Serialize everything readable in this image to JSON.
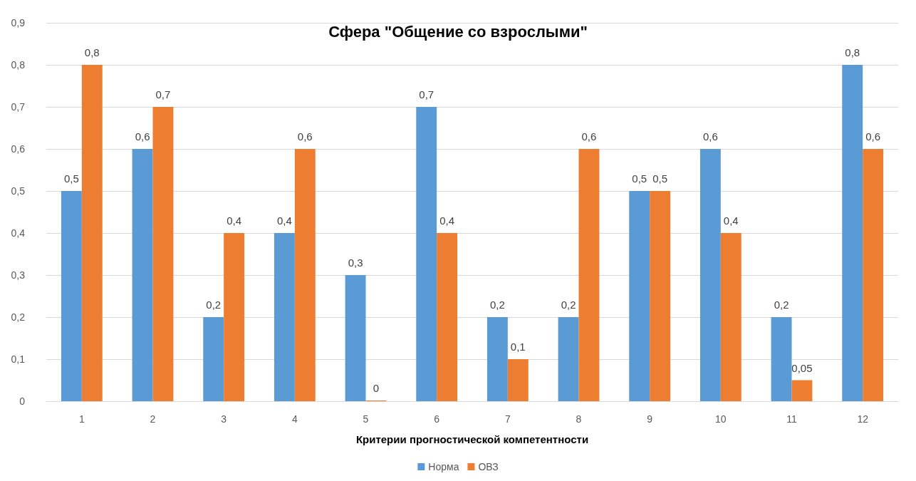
{
  "chart_data": {
    "type": "bar",
    "title": "Сфера \"Общение со взрослыми\"",
    "xlabel": "Критерии прогностической компетентности",
    "categories": [
      "1",
      "2",
      "3",
      "4",
      "5",
      "6",
      "7",
      "8",
      "9",
      "10",
      "11",
      "12"
    ],
    "series": [
      {
        "name": "Норма",
        "color": "#5b9bd5",
        "values": [
          0.5,
          0.6,
          0.2,
          0.4,
          0.3,
          0.7,
          0.2,
          0.2,
          0.5,
          0.6,
          0.2,
          0.8
        ],
        "value_labels": [
          "0,5",
          "0,6",
          "0,2",
          "0,4",
          "0,3",
          "0,7",
          "0,2",
          "0,2",
          "0,5",
          "0,6",
          "0,2",
          "0,8"
        ]
      },
      {
        "name": "ОВЗ",
        "color": "#ed7d31",
        "values": [
          0.8,
          0.7,
          0.4,
          0.6,
          0,
          0.4,
          0.1,
          0.6,
          0.5,
          0.4,
          0.05,
          0.6
        ],
        "value_labels": [
          "0,8",
          "0,7",
          "0,4",
          "0,6",
          "0",
          "0,4",
          "0,1",
          "0,6",
          "0,5",
          "0,4",
          "0,05",
          "0,6"
        ]
      }
    ],
    "ylim": [
      0,
      0.9
    ],
    "yticks": [
      0,
      {
        "value": 0.1,
        "label": "0,1"
      },
      {
        "value": 0.2,
        "label": "0,2"
      },
      {
        "value": 0.3,
        "label": "0,3"
      },
      {
        "value": 0.4,
        "label": "0,4"
      },
      {
        "value": 0.5,
        "label": "0,5"
      },
      {
        "value": 0.6,
        "label": "0,6"
      },
      {
        "value": 0.7,
        "label": "0,7"
      },
      {
        "value": 0.8,
        "label": "0,8"
      },
      {
        "value": 0.9,
        "label": "0,9"
      }
    ],
    "grid": "y",
    "legend": "bottom"
  }
}
